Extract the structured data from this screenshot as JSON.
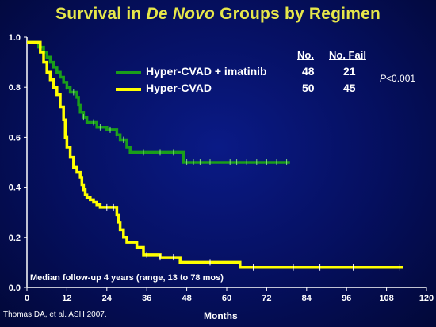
{
  "title": {
    "before": "Survival in ",
    "emph": "De Novo",
    "after": " Groups by Regimen"
  },
  "footnote": "Thomas DA, et al. ASH 2007.",
  "median_note": "Median follow-up 4 years (range, 13 to 78 mos)",
  "table": {
    "head_no": "No.",
    "head_fail": "No. Fail",
    "rows": [
      {
        "no": "48",
        "fail": "21"
      },
      {
        "no": "50",
        "fail": "45"
      }
    ]
  },
  "pvalue": {
    "p": "P",
    "rest": "<0.001"
  },
  "colors": {
    "background": "#050f5e",
    "title": "#e6e64a",
    "series1": "#1a9e1a",
    "series2": "#ffff00",
    "axis": "#ffffff"
  },
  "chart_data": {
    "type": "line",
    "xlabel": "Months",
    "ylabel": "",
    "xlim": [
      0,
      120
    ],
    "ylim": [
      0,
      1.0
    ],
    "xticks": [
      "0",
      "12",
      "24",
      "36",
      "48",
      "60",
      "72",
      "84",
      "96",
      "108",
      "120"
    ],
    "yticks": [
      "0.0",
      "0.2",
      "0.4",
      "0.6",
      "0.8",
      "1.0"
    ],
    "grid": false,
    "legend_position": "top-center",
    "series": [
      {
        "name": "Hyper-CVAD + imatinib",
        "color": "#1a9e1a",
        "step": true,
        "points": [
          [
            0,
            0.98
          ],
          [
            2.5,
            0.98
          ],
          [
            3.5,
            0.96
          ],
          [
            5,
            0.94
          ],
          [
            6,
            0.92
          ],
          [
            7,
            0.9
          ],
          [
            8,
            0.88
          ],
          [
            9,
            0.86
          ],
          [
            10,
            0.84
          ],
          [
            11,
            0.82
          ],
          [
            12,
            0.8
          ],
          [
            13,
            0.78
          ],
          [
            15,
            0.76
          ],
          [
            15.5,
            0.73
          ],
          [
            16,
            0.7
          ],
          [
            17,
            0.68
          ],
          [
            18,
            0.66
          ],
          [
            21,
            0.64
          ],
          [
            24,
            0.63
          ],
          [
            27,
            0.61
          ],
          [
            28,
            0.59
          ],
          [
            30,
            0.56
          ],
          [
            31,
            0.54
          ],
          [
            47,
            0.5
          ],
          [
            79,
            0.5
          ]
        ],
        "censor_marks": [
          12,
          14,
          17,
          20,
          22,
          25,
          27,
          29,
          35,
          40,
          44,
          48,
          50,
          52,
          55,
          61,
          63,
          66,
          69,
          72,
          75,
          78
        ]
      },
      {
        "name": "Hyper-CVAD",
        "color": "#ffff00",
        "step": true,
        "points": [
          [
            0,
            0.98
          ],
          [
            2.5,
            0.98
          ],
          [
            4,
            0.94
          ],
          [
            5,
            0.9
          ],
          [
            6,
            0.86
          ],
          [
            7,
            0.83
          ],
          [
            8,
            0.8
          ],
          [
            9,
            0.77
          ],
          [
            10,
            0.72
          ],
          [
            11,
            0.67
          ],
          [
            11.5,
            0.6
          ],
          [
            12,
            0.56
          ],
          [
            13,
            0.52
          ],
          [
            14,
            0.48
          ],
          [
            15,
            0.46
          ],
          [
            16,
            0.44
          ],
          [
            16.5,
            0.41
          ],
          [
            17,
            0.39
          ],
          [
            17.5,
            0.37
          ],
          [
            18,
            0.36
          ],
          [
            19,
            0.35
          ],
          [
            20,
            0.34
          ],
          [
            21,
            0.33
          ],
          [
            22,
            0.32
          ],
          [
            27,
            0.29
          ],
          [
            27.5,
            0.26
          ],
          [
            28,
            0.23
          ],
          [
            29,
            0.2
          ],
          [
            30,
            0.18
          ],
          [
            33,
            0.16
          ],
          [
            35,
            0.13
          ],
          [
            40,
            0.12
          ],
          [
            46,
            0.1
          ],
          [
            64,
            0.08
          ],
          [
            113,
            0.08
          ]
        ],
        "censor_marks": [
          24,
          26,
          36,
          40,
          44,
          55,
          68,
          80,
          88,
          98,
          112
        ]
      }
    ]
  }
}
